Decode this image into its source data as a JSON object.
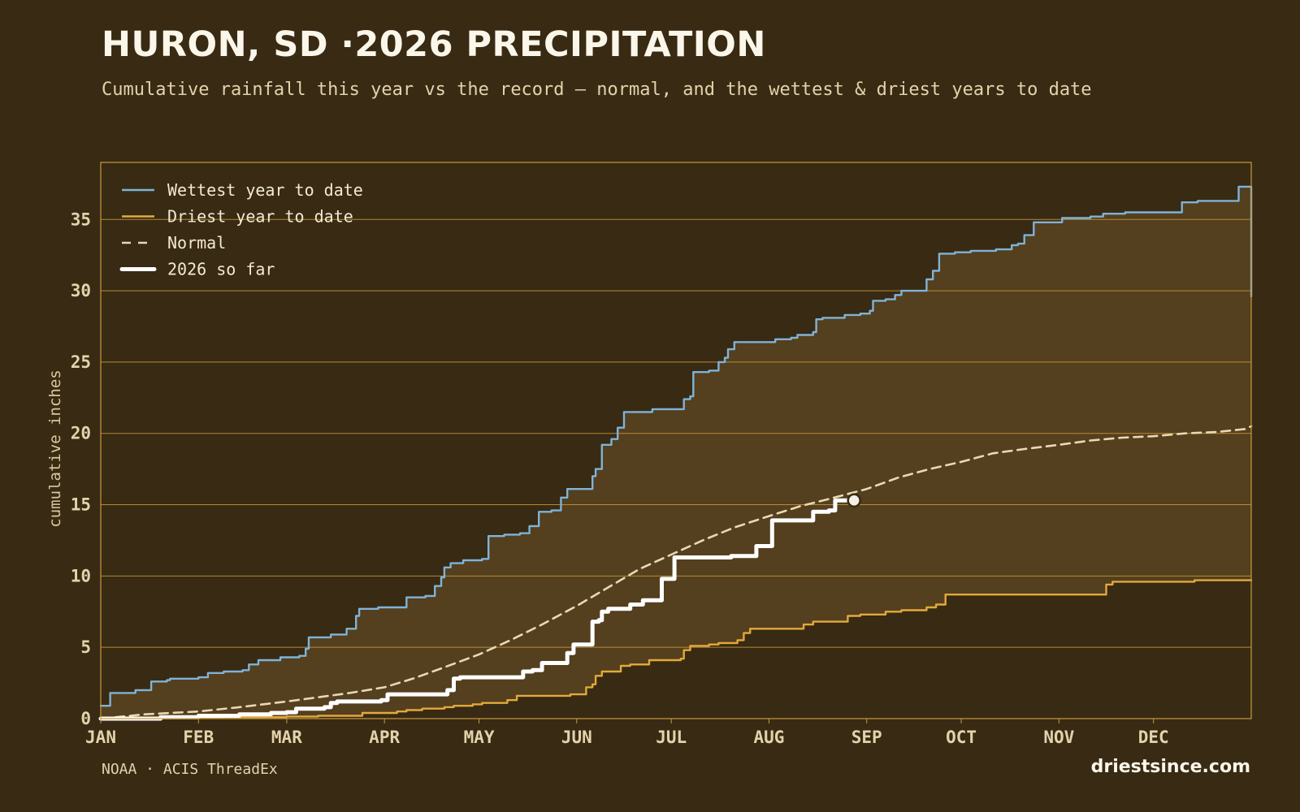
{
  "header": {
    "title": "HURON, SD ·2026 PRECIPITATION",
    "subtitle": "Cumulative rainfall this year vs the record — normal, and the wettest & driest years to date"
  },
  "footer": {
    "source": "NOAA · ACIS ThreadEx",
    "site": "driestsince.com"
  },
  "colors": {
    "background": "#382a13",
    "band_fill": "#543f1e",
    "axis": "#c99a3c",
    "wettest": "#7fb3d8",
    "driest": "#e3a93c",
    "normal": "#e8d9b4",
    "current": "#ffffff"
  },
  "chart_data": {
    "type": "line",
    "title": "HURON, SD ·2026 PRECIPITATION",
    "ylabel": "cumulative inches",
    "xlabel": "",
    "ylim": [
      0,
      39
    ],
    "xlim": [
      1,
      366
    ],
    "x_unit": "day of year",
    "y_ticks": [
      "0",
      "5",
      "10",
      "15",
      "20",
      "25",
      "30",
      "35"
    ],
    "x_tick_labels": [
      {
        "label": "JAN",
        "day": 1
      },
      {
        "label": "FEB",
        "day": 32
      },
      {
        "label": "MAR",
        "day": 60
      },
      {
        "label": "APR",
        "day": 91
      },
      {
        "label": "MAY",
        "day": 121
      },
      {
        "label": "JUN",
        "day": 152
      },
      {
        "label": "JUL",
        "day": 182
      },
      {
        "label": "AUG",
        "day": 213
      },
      {
        "label": "SEP",
        "day": 244
      },
      {
        "label": "OCT",
        "day": 274
      },
      {
        "label": "NOV",
        "day": 305
      },
      {
        "label": "DEC",
        "day": 335
      }
    ],
    "grid": "horizontal",
    "legend_position": "top-left",
    "band": {
      "between": [
        "Driest year to date",
        "Wettest year to date"
      ]
    },
    "series": [
      {
        "name": "Wettest year to date",
        "style": "solid",
        "points": [
          [
            1,
            0.9
          ],
          [
            3,
            0.9
          ],
          [
            4,
            1.8
          ],
          [
            10,
            1.8
          ],
          [
            12,
            2.0
          ],
          [
            15,
            2.0
          ],
          [
            17,
            2.6
          ],
          [
            22,
            2.7
          ],
          [
            23,
            2.8
          ],
          [
            32,
            2.9
          ],
          [
            35,
            3.2
          ],
          [
            40,
            3.3
          ],
          [
            46,
            3.4
          ],
          [
            48,
            3.8
          ],
          [
            51,
            4.1
          ],
          [
            56,
            4.1
          ],
          [
            58,
            4.3
          ],
          [
            64,
            4.4
          ],
          [
            66,
            4.9
          ],
          [
            67,
            5.7
          ],
          [
            72,
            5.7
          ],
          [
            74,
            5.9
          ],
          [
            79,
            6.3
          ],
          [
            82,
            7.2
          ],
          [
            83,
            7.7
          ],
          [
            89,
            7.8
          ],
          [
            98,
            8.5
          ],
          [
            104,
            8.6
          ],
          [
            107,
            9.3
          ],
          [
            109,
            9.9
          ],
          [
            110,
            10.6
          ],
          [
            112,
            10.9
          ],
          [
            116,
            11.1
          ],
          [
            122,
            11.2
          ],
          [
            124,
            12.8
          ],
          [
            129,
            12.9
          ],
          [
            134,
            13.0
          ],
          [
            137,
            13.5
          ],
          [
            140,
            14.5
          ],
          [
            144,
            14.6
          ],
          [
            147,
            15.5
          ],
          [
            149,
            16.1
          ],
          [
            155,
            16.1
          ],
          [
            157,
            17.0
          ],
          [
            158,
            17.5
          ],
          [
            160,
            19.2
          ],
          [
            161,
            19.2
          ],
          [
            163,
            19.6
          ],
          [
            165,
            20.4
          ],
          [
            167,
            21.5
          ],
          [
            174,
            21.5
          ],
          [
            176,
            21.7
          ],
          [
            185,
            21.7
          ],
          [
            186,
            22.4
          ],
          [
            188,
            22.6
          ],
          [
            189,
            24.3
          ],
          [
            194,
            24.4
          ],
          [
            197,
            25.0
          ],
          [
            199,
            25.3
          ],
          [
            200,
            25.9
          ],
          [
            202,
            26.4
          ],
          [
            213,
            26.4
          ],
          [
            215,
            26.6
          ],
          [
            220,
            26.7
          ],
          [
            222,
            26.9
          ],
          [
            227,
            27.1
          ],
          [
            228,
            28.0
          ],
          [
            230,
            28.1
          ],
          [
            235,
            28.1
          ],
          [
            237,
            28.3
          ],
          [
            242,
            28.4
          ],
          [
            245,
            28.6
          ],
          [
            246,
            29.3
          ],
          [
            250,
            29.4
          ],
          [
            253,
            29.7
          ],
          [
            255,
            30.0
          ],
          [
            261,
            30.0
          ],
          [
            263,
            30.8
          ],
          [
            265,
            31.4
          ],
          [
            267,
            32.6
          ],
          [
            272,
            32.7
          ],
          [
            277,
            32.8
          ],
          [
            285,
            32.9
          ],
          [
            290,
            33.2
          ],
          [
            292,
            33.3
          ],
          [
            294,
            33.9
          ],
          [
            297,
            34.8
          ],
          [
            304,
            34.8
          ],
          [
            306,
            35.1
          ],
          [
            315,
            35.2
          ],
          [
            319,
            35.4
          ],
          [
            326,
            35.5
          ],
          [
            342,
            35.5
          ],
          [
            344,
            36.2
          ],
          [
            349,
            36.3
          ],
          [
            360,
            36.3
          ],
          [
            362,
            37.3
          ],
          [
            365,
            37.3
          ],
          [
            366,
            29.6
          ]
        ]
      },
      {
        "name": "Driest year to date",
        "style": "solid",
        "points": [
          [
            1,
            0.0
          ],
          [
            20,
            0.05
          ],
          [
            40,
            0.1
          ],
          [
            60,
            0.15
          ],
          [
            70,
            0.2
          ],
          [
            82,
            0.2
          ],
          [
            84,
            0.4
          ],
          [
            95,
            0.5
          ],
          [
            98,
            0.6
          ],
          [
            103,
            0.7
          ],
          [
            110,
            0.8
          ],
          [
            113,
            0.9
          ],
          [
            119,
            1.0
          ],
          [
            122,
            1.1
          ],
          [
            128,
            1.1
          ],
          [
            130,
            1.3
          ],
          [
            133,
            1.6
          ],
          [
            135,
            1.6
          ],
          [
            150,
            1.7
          ],
          [
            153,
            1.7
          ],
          [
            155,
            2.2
          ],
          [
            157,
            2.4
          ],
          [
            158,
            3.0
          ],
          [
            160,
            3.3
          ],
          [
            163,
            3.3
          ],
          [
            166,
            3.7
          ],
          [
            169,
            3.8
          ],
          [
            173,
            3.8
          ],
          [
            175,
            4.1
          ],
          [
            185,
            4.2
          ],
          [
            186,
            4.8
          ],
          [
            188,
            5.1
          ],
          [
            194,
            5.2
          ],
          [
            197,
            5.3
          ],
          [
            203,
            5.5
          ],
          [
            205,
            6.0
          ],
          [
            207,
            6.3
          ],
          [
            222,
            6.3
          ],
          [
            224,
            6.6
          ],
          [
            227,
            6.8
          ],
          [
            236,
            6.8
          ],
          [
            238,
            7.2
          ],
          [
            242,
            7.3
          ],
          [
            247,
            7.3
          ],
          [
            250,
            7.5
          ],
          [
            255,
            7.6
          ],
          [
            260,
            7.6
          ],
          [
            263,
            7.8
          ],
          [
            266,
            8.0
          ],
          [
            269,
            8.7
          ],
          [
            300,
            8.7
          ],
          [
            318,
            8.7
          ],
          [
            320,
            9.4
          ],
          [
            322,
            9.6
          ],
          [
            330,
            9.6
          ],
          [
            345,
            9.6
          ],
          [
            348,
            9.7
          ],
          [
            366,
            9.7
          ]
        ]
      },
      {
        "name": "Normal",
        "style": "dashed",
        "points": [
          [
            1,
            0.0
          ],
          [
            15,
            0.3
          ],
          [
            32,
            0.5
          ],
          [
            45,
            0.8
          ],
          [
            60,
            1.2
          ],
          [
            70,
            1.5
          ],
          [
            80,
            1.8
          ],
          [
            91,
            2.2
          ],
          [
            100,
            2.8
          ],
          [
            110,
            3.6
          ],
          [
            121,
            4.5
          ],
          [
            131,
            5.5
          ],
          [
            141,
            6.6
          ],
          [
            152,
            7.9
          ],
          [
            162,
            9.2
          ],
          [
            172,
            10.5
          ],
          [
            182,
            11.5
          ],
          [
            192,
            12.5
          ],
          [
            202,
            13.4
          ],
          [
            213,
            14.2
          ],
          [
            223,
            14.9
          ],
          [
            232,
            15.4
          ],
          [
            244,
            16.1
          ],
          [
            254,
            16.9
          ],
          [
            264,
            17.5
          ],
          [
            274,
            18.0
          ],
          [
            284,
            18.6
          ],
          [
            294,
            18.9
          ],
          [
            305,
            19.2
          ],
          [
            315,
            19.5
          ],
          [
            325,
            19.7
          ],
          [
            335,
            19.8
          ],
          [
            345,
            20.0
          ],
          [
            355,
            20.1
          ],
          [
            364,
            20.3
          ],
          [
            366,
            20.5
          ]
        ]
      },
      {
        "name": "2026 so far",
        "style": "solid-thick",
        "points": [
          [
            1,
            0.0
          ],
          [
            20,
            0.1
          ],
          [
            32,
            0.2
          ],
          [
            45,
            0.3
          ],
          [
            55,
            0.4
          ],
          [
            60,
            0.45
          ],
          [
            63,
            0.7
          ],
          [
            72,
            0.8
          ],
          [
            74,
            1.1
          ],
          [
            76,
            1.2
          ],
          [
            88,
            1.2
          ],
          [
            90,
            1.3
          ],
          [
            92,
            1.7
          ],
          [
            108,
            1.7
          ],
          [
            111,
            2.0
          ],
          [
            113,
            2.8
          ],
          [
            115,
            2.9
          ],
          [
            132,
            2.9
          ],
          [
            135,
            3.3
          ],
          [
            138,
            3.4
          ],
          [
            141,
            3.9
          ],
          [
            148,
            3.9
          ],
          [
            149,
            4.6
          ],
          [
            151,
            5.2
          ],
          [
            154,
            5.2
          ],
          [
            157,
            6.8
          ],
          [
            159,
            6.9
          ],
          [
            160,
            7.5
          ],
          [
            162,
            7.7
          ],
          [
            167,
            7.7
          ],
          [
            169,
            8.0
          ],
          [
            172,
            8.0
          ],
          [
            173,
            8.3
          ],
          [
            178,
            8.3
          ],
          [
            179,
            9.8
          ],
          [
            182,
            9.8
          ],
          [
            183,
            11.3
          ],
          [
            199,
            11.3
          ],
          [
            201,
            11.4
          ],
          [
            207,
            11.4
          ],
          [
            209,
            12.1
          ],
          [
            212,
            12.1
          ],
          [
            214,
            13.9
          ],
          [
            225,
            13.9
          ],
          [
            227,
            14.5
          ],
          [
            232,
            14.6
          ],
          [
            234,
            15.3
          ],
          [
            238,
            15.3
          ],
          [
            240,
            15.3
          ]
        ],
        "end_marker": true
      }
    ]
  }
}
